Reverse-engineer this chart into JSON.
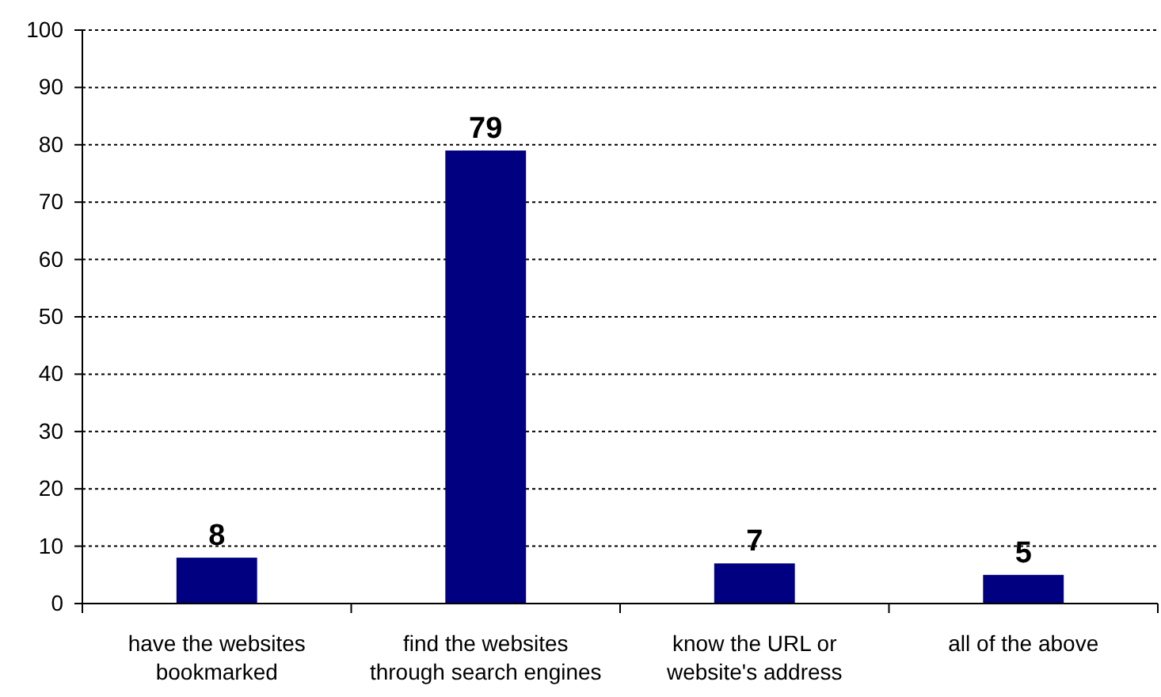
{
  "chart_data": {
    "type": "bar",
    "categories": [
      "have the websites\nbookmarked",
      "find the websites\nthrough search engines",
      "know the URL or\nwebsite's address",
      "all of the above"
    ],
    "values": [
      8,
      79,
      7,
      5
    ],
    "color": "#000080",
    "ylim": [
      0,
      100
    ],
    "yticks": [
      0,
      10,
      20,
      30,
      40,
      50,
      60,
      70,
      80,
      90,
      100
    ],
    "grid": "y",
    "data_labels": true
  }
}
